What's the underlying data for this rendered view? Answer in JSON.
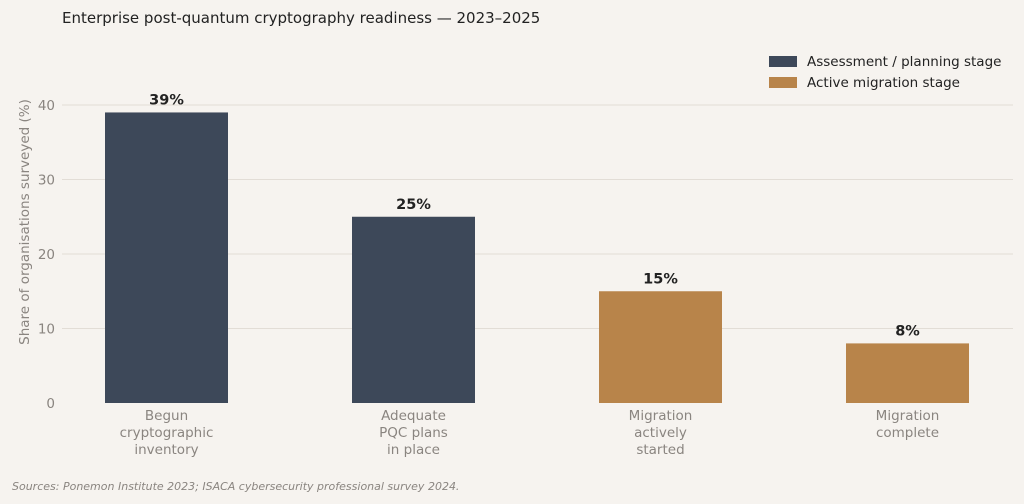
{
  "chart_data": {
    "type": "bar",
    "title": "Enterprise post-quantum cryptography readiness — 2023–2025",
    "ylabel": "Share of organisations surveyed (%)",
    "xlabel": "",
    "ylim": [
      0,
      40
    ],
    "yticks": [
      0,
      10,
      20,
      30,
      40
    ],
    "grid": true,
    "legend_position": "top-right",
    "categories": [
      [
        "Begun",
        "cryptographic",
        "inventory"
      ],
      [
        "Adequate",
        "PQC plans",
        "in place"
      ],
      [
        "Migration",
        "actively",
        "started"
      ],
      [
        "Migration",
        "complete"
      ]
    ],
    "values": [
      39,
      25,
      15,
      8
    ],
    "data_labels": [
      "39%",
      "25%",
      "15%",
      "8%"
    ],
    "bar_groups": [
      0,
      0,
      1,
      1
    ],
    "legend": [
      {
        "name": "Assessment / planning stage",
        "color": "#3d4859"
      },
      {
        "name": "Active migration stage",
        "color": "#b8844a"
      }
    ]
  },
  "footnote": "Sources: Ponemon Institute 2023; ISACA cybersecurity professional survey 2024."
}
